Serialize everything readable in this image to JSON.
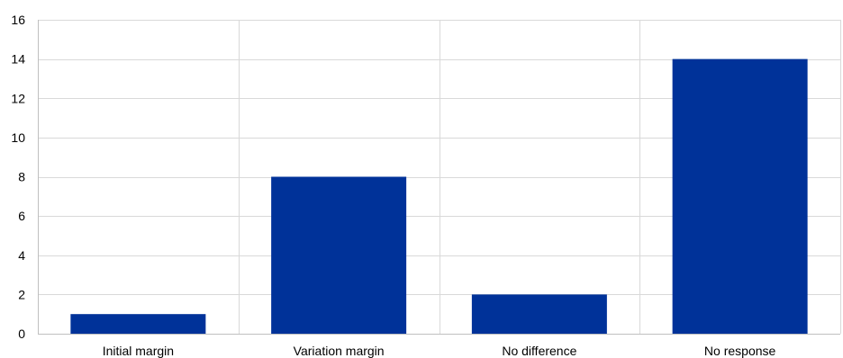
{
  "chart_data": {
    "type": "bar",
    "categories": [
      "Initial margin",
      "Variation margin",
      "No difference",
      "No response"
    ],
    "values": [
      1,
      8,
      2,
      14
    ],
    "ylim": [
      0,
      16
    ],
    "yticks": [
      0,
      2,
      4,
      6,
      8,
      10,
      12,
      14,
      16
    ],
    "grid": true,
    "legend": "none",
    "bar_color": "#003299",
    "grid_color": "#d9d9d9",
    "axis_color": "#bfbfbf"
  }
}
